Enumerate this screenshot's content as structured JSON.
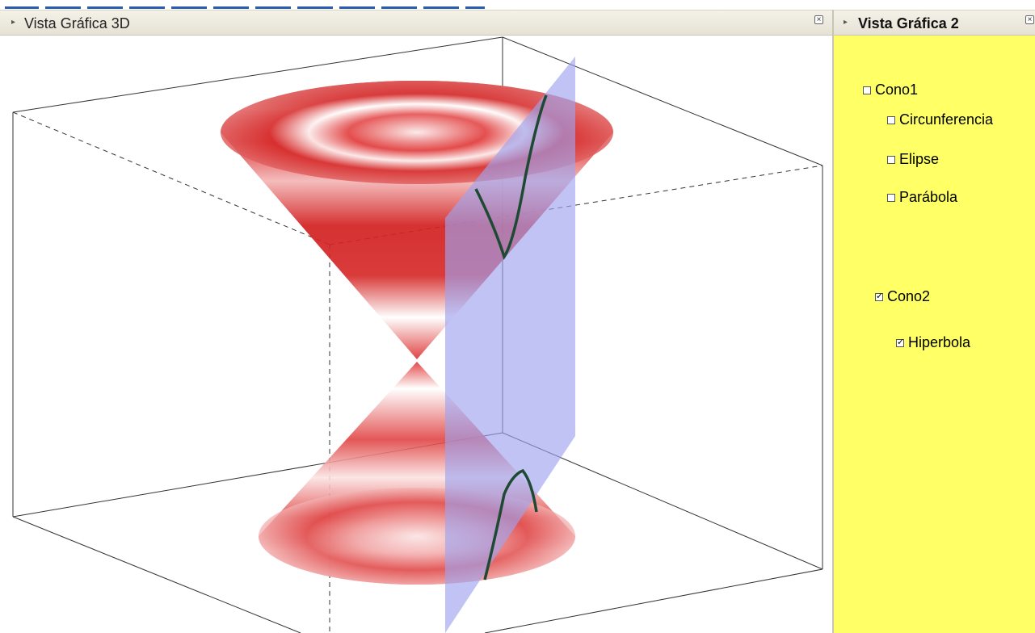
{
  "views": {
    "graphics3d": {
      "title": "Vista Gráfica 3D"
    },
    "graphics2": {
      "title": "Vista Gráfica 2"
    }
  },
  "icons": {
    "collapse": "triangle-right-icon",
    "close": "close-icon"
  },
  "checkboxes": [
    {
      "label": "Cono1",
      "checked": false
    },
    {
      "label": "Circunferencia",
      "checked": false
    },
    {
      "label": "Elipse",
      "checked": false
    },
    {
      "label": "Parábola",
      "checked": false
    },
    {
      "label": "Cono2",
      "checked": true
    },
    {
      "label": "Hiperbola",
      "checked": true
    }
  ],
  "colors": {
    "cone": "#d42020",
    "plane": "#a9aef0",
    "curve": "#1e4a34",
    "panel_background": "#ffff66"
  }
}
